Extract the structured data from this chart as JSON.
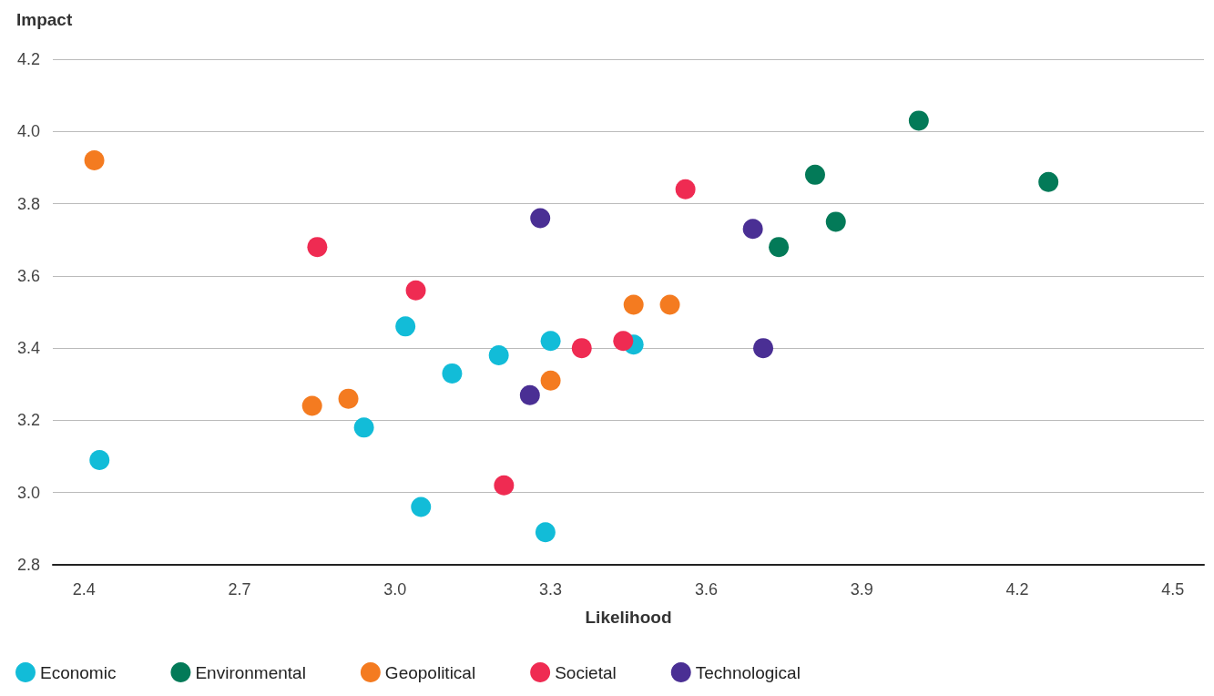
{
  "chart_data": {
    "type": "scatter",
    "xlabel": "Likelihood",
    "ylabel": "Impact",
    "xlim": [
      2.34,
      4.56
    ],
    "xticks": [
      2.4,
      2.7,
      {
        "value": 3,
        "label": "3.0"
      },
      3.3,
      3.6,
      3.9,
      4.2,
      4.5
    ],
    "ylim": [
      2.8,
      4.2
    ],
    "yticks": [
      2.8,
      {
        "value": 3,
        "label": "3.0"
      },
      3.2,
      3.4,
      3.6,
      3.8,
      {
        "value": 4,
        "label": "4.0"
      },
      4.2
    ],
    "grid": "y",
    "legend": "bottom left",
    "marker": "circle",
    "series": [
      {
        "name": "Economic",
        "color": "#12bcd8",
        "x": [
          2.43,
          2.94,
          3.02,
          3.05,
          3.11,
          3.2,
          3.3,
          3.46,
          3.29
        ],
        "values": [
          3.09,
          3.18,
          3.46,
          2.96,
          3.33,
          3.38,
          3.42,
          3.41,
          2.89
        ]
      },
      {
        "name": "Environmental",
        "color": "#037a58",
        "x": [
          4.01,
          3.81,
          4.26,
          3.85,
          3.74
        ],
        "values": [
          4.03,
          3.88,
          3.86,
          3.75,
          3.68
        ]
      },
      {
        "name": "Geopolitical",
        "color": "#f47b20",
        "x": [
          2.42,
          2.84,
          2.91,
          3.3,
          3.46,
          3.53
        ],
        "values": [
          3.92,
          3.24,
          3.26,
          3.31,
          3.52,
          3.52
        ]
      },
      {
        "name": "Societal",
        "color": "#ef2b52",
        "x": [
          2.85,
          3.04,
          3.56,
          3.36,
          3.44,
          3.21
        ],
        "values": [
          3.68,
          3.56,
          3.84,
          3.4,
          3.42,
          3.02
        ]
      },
      {
        "name": "Technological",
        "color": "#4a2f94",
        "x": [
          3.28,
          3.69,
          3.71,
          3.26
        ],
        "values": [
          3.76,
          3.73,
          3.4,
          3.27
        ]
      }
    ]
  }
}
